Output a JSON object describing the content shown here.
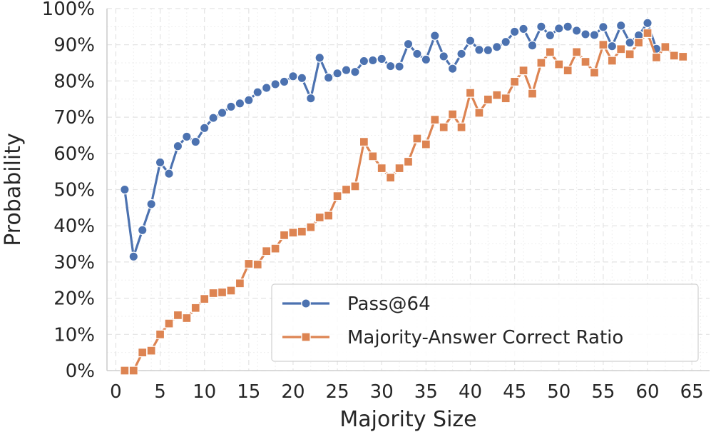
{
  "chart_data": {
    "type": "line",
    "xlabel": "Majority Size",
    "ylabel": "Probability",
    "xlim": [
      -1,
      67
    ],
    "ylim": [
      0,
      100
    ],
    "x_ticks": [
      0,
      5,
      10,
      15,
      20,
      25,
      30,
      35,
      40,
      45,
      50,
      55,
      60,
      65
    ],
    "y_ticks": [
      0,
      10,
      20,
      30,
      40,
      50,
      60,
      70,
      80,
      90,
      100
    ],
    "y_tick_labels": [
      "0%",
      "10%",
      "20%",
      "30%",
      "40%",
      "50%",
      "60%",
      "70%",
      "80%",
      "90%",
      "100%"
    ],
    "grid": true,
    "legend_position": "bottom-right",
    "series": [
      {
        "name": "Pass@64",
        "color": "#4c72b0",
        "marker": "circle",
        "x": [
          1,
          2,
          3,
          4,
          5,
          6,
          7,
          8,
          9,
          10,
          11,
          12,
          13,
          14,
          15,
          16,
          17,
          18,
          19,
          20,
          21,
          22,
          23,
          24,
          25,
          26,
          27,
          28,
          29,
          30,
          31,
          32,
          33,
          34,
          35,
          36,
          37,
          38,
          39,
          40,
          41,
          42,
          43,
          44,
          45,
          46,
          47,
          48,
          49,
          50,
          51,
          52,
          53,
          54,
          55,
          56,
          57,
          58,
          59,
          60,
          61
        ],
        "values": [
          50,
          31.5,
          38.8,
          46,
          57.5,
          54.4,
          62,
          64.6,
          63.2,
          67,
          69.8,
          71.2,
          72.9,
          73.8,
          74.7,
          76.9,
          78.1,
          79.1,
          79.8,
          81.3,
          80.8,
          75.2,
          86.4,
          80.9,
          82.1,
          83,
          82.5,
          85.5,
          85.7,
          86.1,
          84.1,
          84,
          90.2,
          87.5,
          85.9,
          92.5,
          86.8,
          83.4,
          87.5,
          91.1,
          88.6,
          88.5,
          89.4,
          90.8,
          93.6,
          94.4,
          89.8,
          95,
          92.6,
          94.5,
          95,
          93.9,
          92.9,
          92.7,
          94.9,
          89.6,
          95.3,
          90.6,
          92.6,
          96,
          88.9
        ]
      },
      {
        "name": "Majority-Answer Correct Ratio",
        "color": "#dd8452",
        "marker": "square",
        "x": [
          1,
          2,
          3,
          4,
          5,
          6,
          7,
          8,
          9,
          10,
          11,
          12,
          13,
          14,
          15,
          16,
          17,
          18,
          19,
          20,
          21,
          22,
          23,
          24,
          25,
          26,
          27,
          28,
          29,
          30,
          31,
          32,
          33,
          34,
          35,
          36,
          37,
          38,
          39,
          40,
          41,
          42,
          43,
          44,
          45,
          46,
          47,
          48,
          49,
          50,
          51,
          52,
          53,
          54,
          55,
          56,
          57,
          58,
          59,
          60,
          61,
          62,
          63,
          64
        ],
        "values": [
          0,
          0,
          5,
          5.5,
          10,
          13,
          15.3,
          14.5,
          17.3,
          19.8,
          21.4,
          21.6,
          22.1,
          24.1,
          29.5,
          29.3,
          33,
          33.7,
          37.4,
          38.1,
          38.4,
          39.6,
          42.3,
          42.8,
          48.2,
          50,
          50.9,
          63.2,
          59.2,
          55.9,
          53.3,
          55.9,
          57.7,
          64.1,
          62.5,
          69.3,
          67.2,
          70.8,
          67.2,
          76.7,
          71.2,
          74.9,
          76.1,
          75.2,
          79.8,
          82.9,
          76.5,
          85,
          88,
          84.6,
          82.9,
          88,
          85.3,
          82.3,
          90,
          85.6,
          88.8,
          87.4,
          90.6,
          93.2,
          86.5,
          89.4,
          87,
          86.7
        ]
      }
    ]
  }
}
